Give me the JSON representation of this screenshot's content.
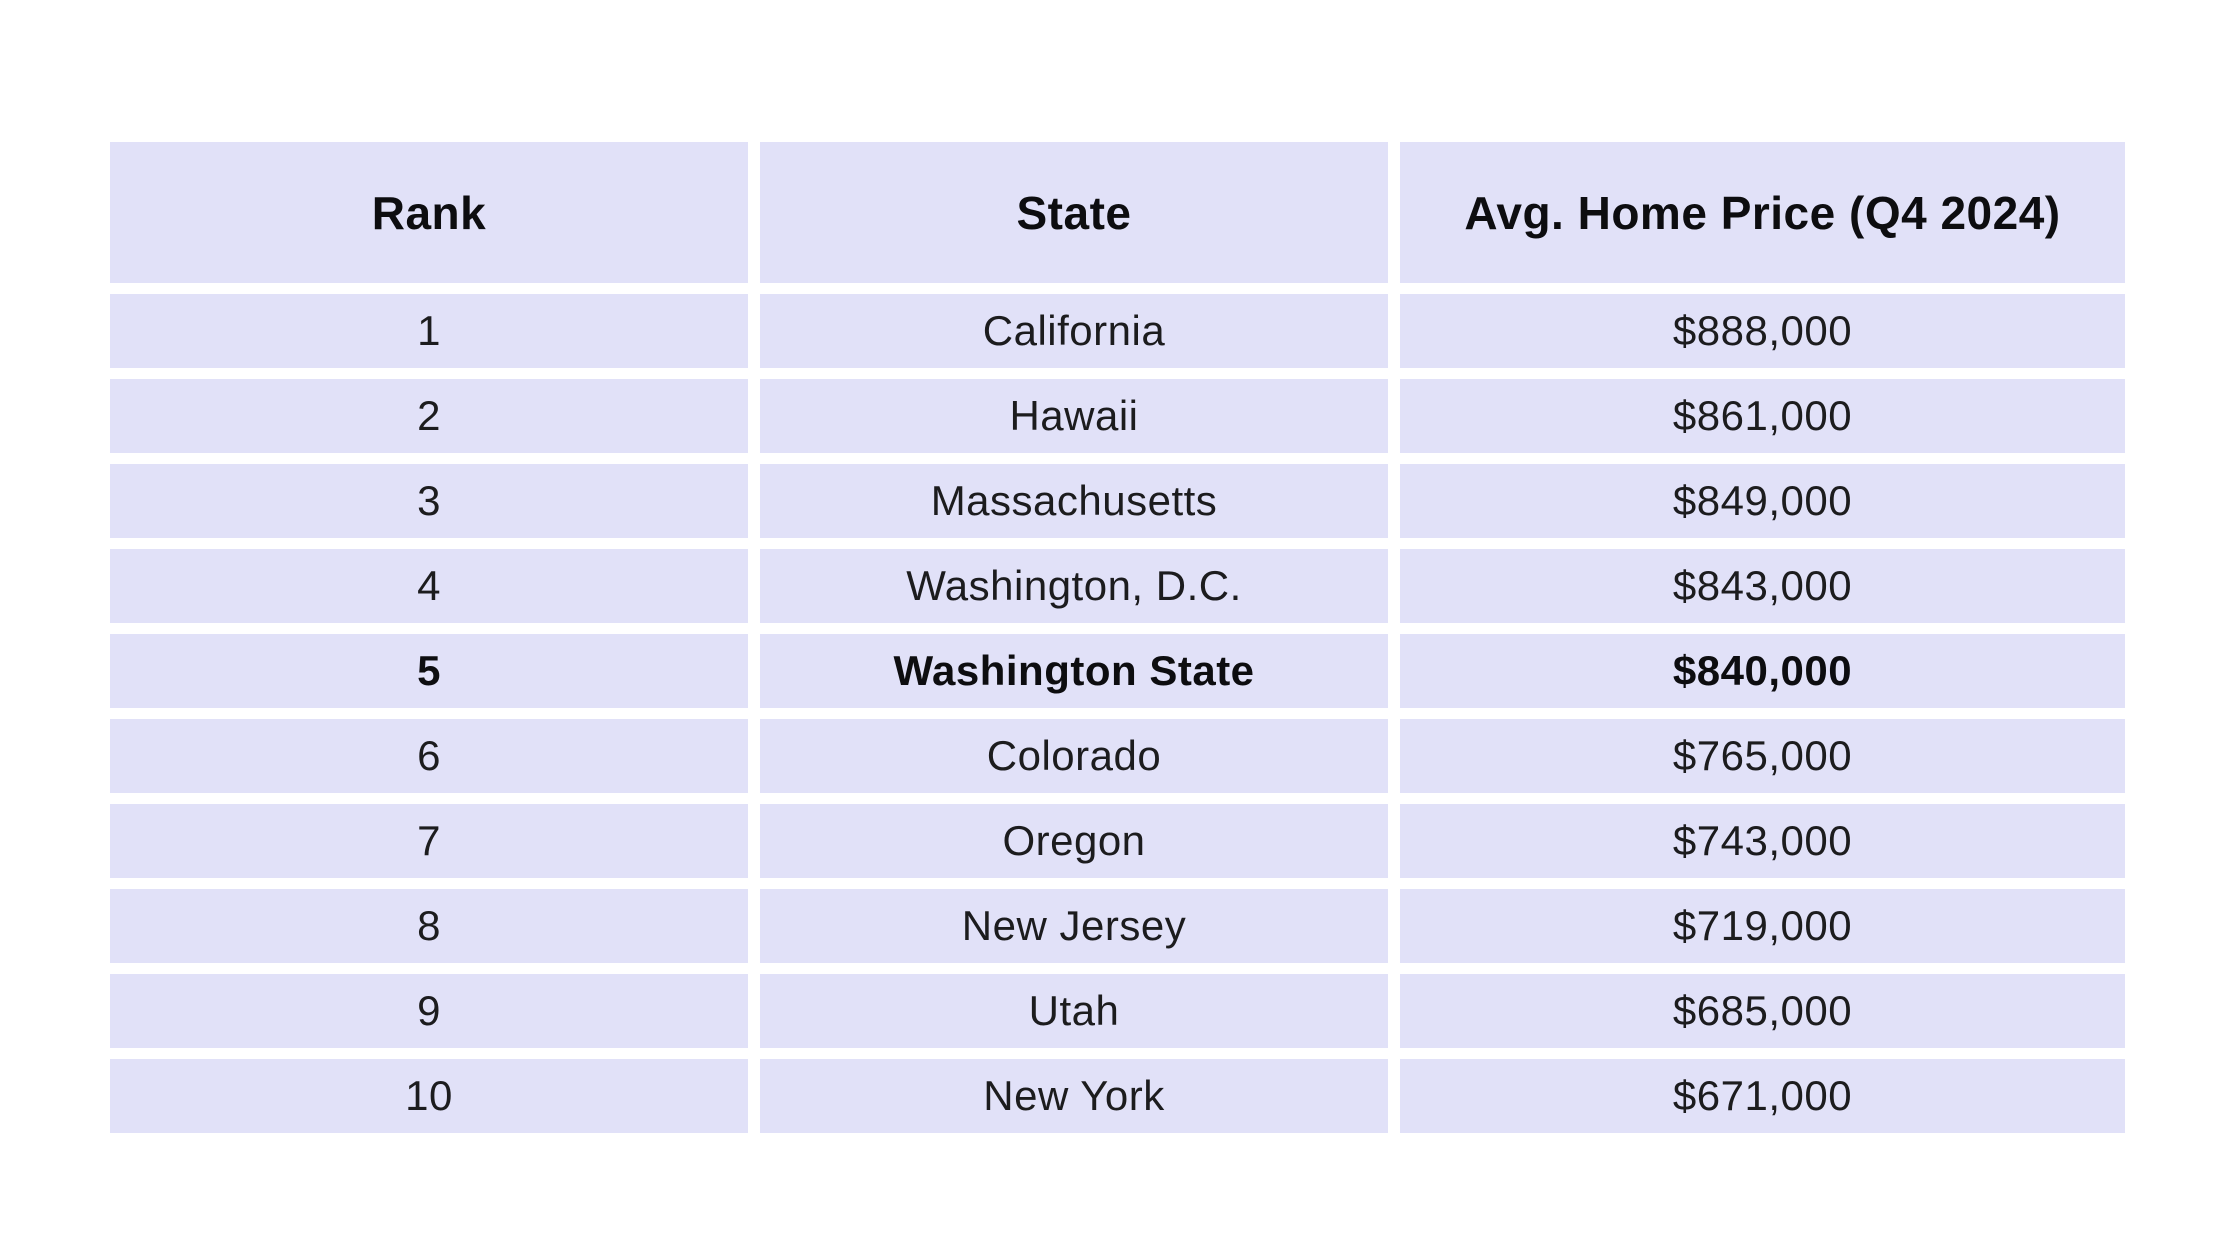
{
  "table": {
    "headers": [
      "Rank",
      "State",
      "Avg. Home Price (Q4 2024)"
    ],
    "rows": [
      {
        "rank": "1",
        "state": "California",
        "price": "$888,000",
        "highlight": false
      },
      {
        "rank": "2",
        "state": "Hawaii",
        "price": "$861,000",
        "highlight": false
      },
      {
        "rank": "3",
        "state": "Massachusetts",
        "price": "$849,000",
        "highlight": false
      },
      {
        "rank": "4",
        "state": "Washington, D.C.",
        "price": "$843,000",
        "highlight": false
      },
      {
        "rank": "5",
        "state": "Washington State",
        "price": "$840,000",
        "highlight": true
      },
      {
        "rank": "6",
        "state": "Colorado",
        "price": "$765,000",
        "highlight": false
      },
      {
        "rank": "7",
        "state": "Oregon",
        "price": "$743,000",
        "highlight": false
      },
      {
        "rank": "8",
        "state": "New Jersey",
        "price": "$719,000",
        "highlight": false
      },
      {
        "rank": "9",
        "state": "Utah",
        "price": "$685,000",
        "highlight": false
      },
      {
        "rank": "10",
        "state": "New York",
        "price": "$671,000",
        "highlight": false
      }
    ]
  },
  "chart_data": {
    "type": "table",
    "title": "",
    "columns": [
      "Rank",
      "State",
      "Avg. Home Price (Q4 2024)"
    ],
    "rows": [
      [
        1,
        "California",
        888000
      ],
      [
        2,
        "Hawaii",
        861000
      ],
      [
        3,
        "Massachusetts",
        849000
      ],
      [
        4,
        "Washington, D.C.",
        843000
      ],
      [
        5,
        "Washington State",
        840000
      ],
      [
        6,
        "Colorado",
        765000
      ],
      [
        7,
        "Oregon",
        743000
      ],
      [
        8,
        "New Jersey",
        719000
      ],
      [
        9,
        "Utah",
        685000
      ],
      [
        10,
        "New York",
        671000
      ]
    ],
    "highlighted_row": "Washington State",
    "notes": "Row 5 (Washington State, $840,000) rendered in bold"
  },
  "colors": {
    "cell_bg": "#e1e1f8",
    "gap_bg": "#ffffff",
    "text": "#1c1c1e",
    "bold_text": "#0d0d10"
  }
}
